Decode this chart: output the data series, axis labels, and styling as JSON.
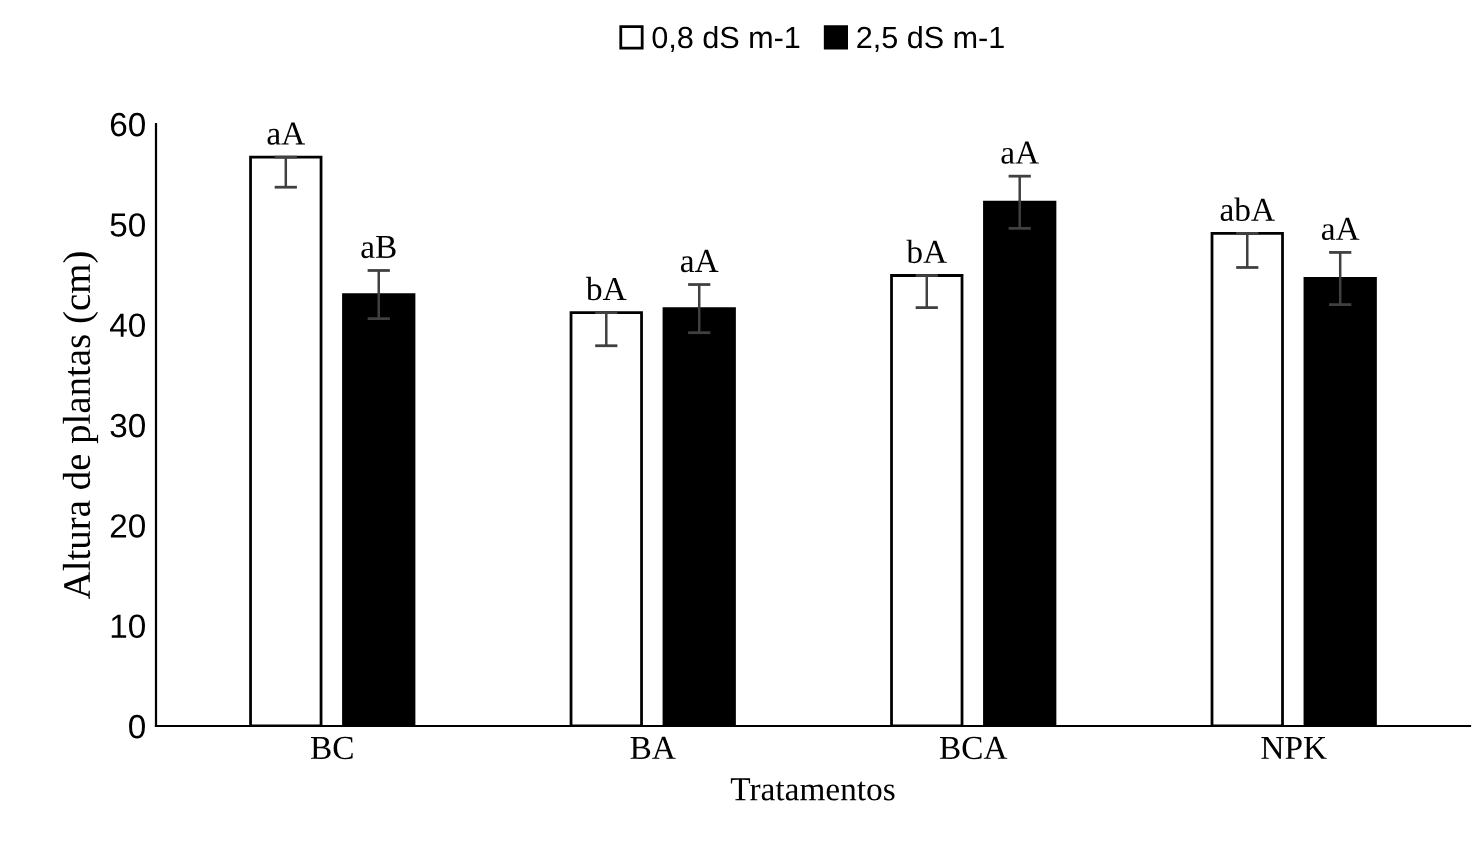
{
  "chart_data": {
    "type": "bar",
    "xlabel": "Tratamentos",
    "ylabel": "Altura de plantas (cm)",
    "categories": [
      "BC",
      "BA",
      "BCA",
      "NPK"
    ],
    "series": [
      {
        "name": "0,8 dS m-1",
        "color": "#ffffff",
        "values": [
          56.7,
          41.2,
          44.9,
          49.1
        ],
        "errors": [
          [
            53.7,
            56.7
          ],
          [
            37.9,
            41.2
          ],
          [
            41.7,
            44.9
          ],
          [
            45.7,
            49.1
          ]
        ],
        "value_labels": [
          "aA",
          "bA",
          "bA",
          "abA"
        ]
      },
      {
        "name": "2,5 dS m-1",
        "color": "#000000",
        "values": [
          43.0,
          41.6,
          52.2,
          44.6
        ],
        "errors": [
          2.4,
          2.4,
          2.6,
          2.6
        ],
        "value_labels": [
          "aB",
          "aA",
          "aA",
          "aA"
        ]
      }
    ],
    "ylim": [
      0,
      60
    ],
    "yticks": [
      0,
      10,
      20,
      30,
      40,
      50,
      60
    ],
    "grid": false,
    "legend": "top"
  }
}
